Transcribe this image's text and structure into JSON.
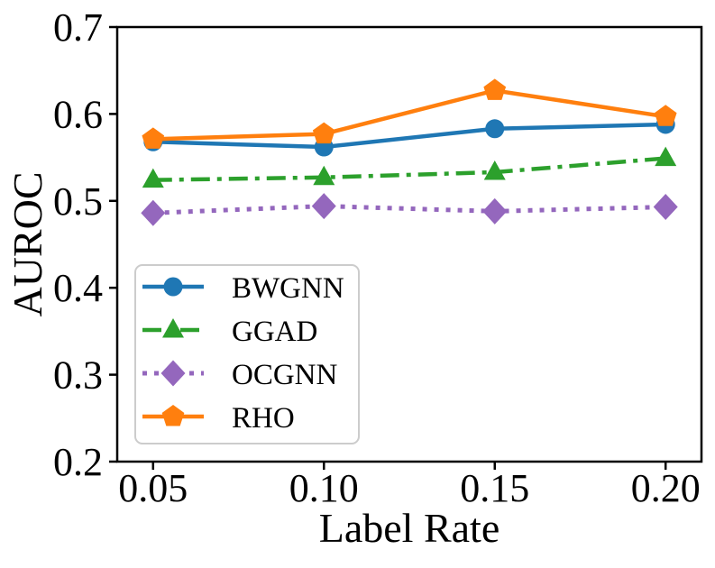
{
  "figure": {
    "background": "#ffffff",
    "spine_color": "#000000"
  },
  "chart_data": {
    "type": "line",
    "title": "",
    "xlabel": "Label Rate",
    "ylabel": "AUROC",
    "x": [
      0.05,
      0.1,
      0.15,
      0.2
    ],
    "x_tick_labels": [
      "0.05",
      "0.10",
      "0.15",
      "0.20"
    ],
    "y_ticks": [
      0.2,
      0.3,
      0.4,
      0.5,
      0.6,
      0.7
    ],
    "y_tick_labels": [
      "0.2",
      "0.3",
      "0.4",
      "0.5",
      "0.6",
      "0.7"
    ],
    "xlim": [
      0.0395,
      0.2105
    ],
    "ylim": [
      0.2,
      0.7
    ],
    "grid": false,
    "legend_position": "lower-left",
    "series": [
      {
        "name": "BWGNN",
        "color": "#1f77b4",
        "marker": "circle",
        "linestyle": "solid",
        "values": [
          0.568,
          0.562,
          0.583,
          0.588
        ]
      },
      {
        "name": "GGAD",
        "color": "#2ca02c",
        "marker": "triangle",
        "linestyle": "dashdot",
        "values": [
          0.524,
          0.527,
          0.533,
          0.549
        ]
      },
      {
        "name": "OCGNN",
        "color": "#9467bd",
        "marker": "diamond",
        "linestyle": "dotted",
        "values": [
          0.486,
          0.494,
          0.488,
          0.493
        ]
      },
      {
        "name": "RHO",
        "color": "#ff7f0e",
        "marker": "pentagon",
        "linestyle": "solid",
        "values": [
          0.571,
          0.577,
          0.627,
          0.597
        ]
      }
    ]
  }
}
